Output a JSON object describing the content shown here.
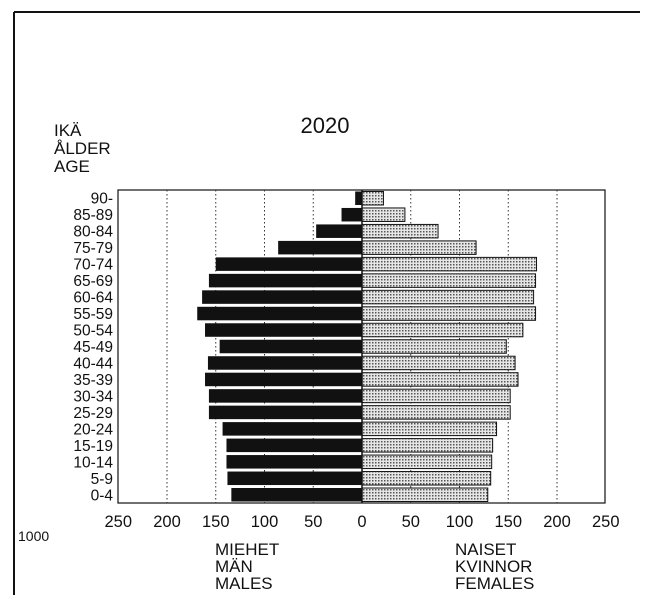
{
  "chart_data": {
    "type": "bar",
    "title": "2020",
    "age_label_lines": [
      "IKÄ",
      "ÅLDER",
      "AGE"
    ],
    "unit_label": "1000",
    "left_label_lines": [
      "MIEHET",
      "MÄN",
      "MALES"
    ],
    "right_label_lines": [
      "NAISET",
      "KVINNOR",
      "FEMALES"
    ],
    "x_ticks_left": [
      "250",
      "200",
      "150",
      "100",
      "50",
      "0"
    ],
    "x_ticks_right": [
      "50",
      "100",
      "150",
      "200",
      "250"
    ],
    "xlim": [
      0,
      250
    ],
    "grid": true,
    "categories": [
      "90-",
      "85-89",
      "80-84",
      "75-79",
      "70-74",
      "65-69",
      "60-64",
      "55-59",
      "50-54",
      "45-49",
      "40-44",
      "35-39",
      "30-34",
      "25-29",
      "20-24",
      "15-19",
      "10-14",
      "5-9",
      "0-4"
    ],
    "series": [
      {
        "name": "MIEHET / MÄN / MALES",
        "color": "#111111",
        "values": [
          7,
          21,
          47,
          86,
          150,
          157,
          164,
          169,
          161,
          146,
          158,
          161,
          157,
          157,
          143,
          139,
          139,
          138,
          134
        ]
      },
      {
        "name": "NAISET / KVINNOR / FEMALES",
        "color": "#bdbdbd",
        "values": [
          22,
          44,
          78,
          117,
          179,
          178,
          176,
          178,
          165,
          148,
          157,
          160,
          152,
          152,
          138,
          134,
          133,
          132,
          129
        ]
      }
    ]
  }
}
